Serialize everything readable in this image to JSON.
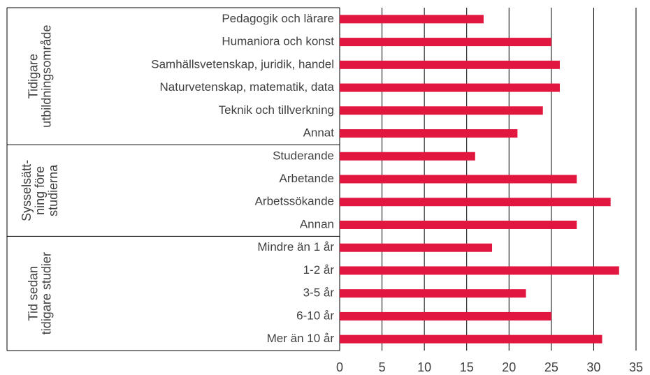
{
  "chart_data": {
    "type": "barh",
    "groups": [
      {
        "label": [
          "Tidigare",
          "utbildningsområde"
        ],
        "categories": [
          "Pedagogik och lärare",
          "Humaniora och konst",
          "Samhällsvetenskap, juridik, handel",
          "Naturvetenskap, matematik, data",
          "Teknik och tillverkning",
          "Annat"
        ],
        "values": [
          17,
          25,
          26,
          26,
          24,
          21
        ]
      },
      {
        "label": [
          "Sysselsätt-",
          "ning före",
          "studierna"
        ],
        "categories": [
          "Studerande",
          "Arbetande",
          "Arbetssökande",
          "Annan"
        ],
        "values": [
          16,
          28,
          32,
          28
        ]
      },
      {
        "label": [
          "Tid sedan",
          "tidigare studier"
        ],
        "categories": [
          "Mindre än 1 år",
          "1-2 år",
          "3-5 år",
          "6-10 år",
          "Mer än 10 år"
        ],
        "values": [
          18,
          33,
          22,
          25,
          31
        ]
      }
    ],
    "color": "#e2173f",
    "xlim": [
      0,
      35
    ],
    "xticks": [
      0,
      5,
      10,
      15,
      20,
      25,
      30,
      35
    ],
    "grid": true
  }
}
